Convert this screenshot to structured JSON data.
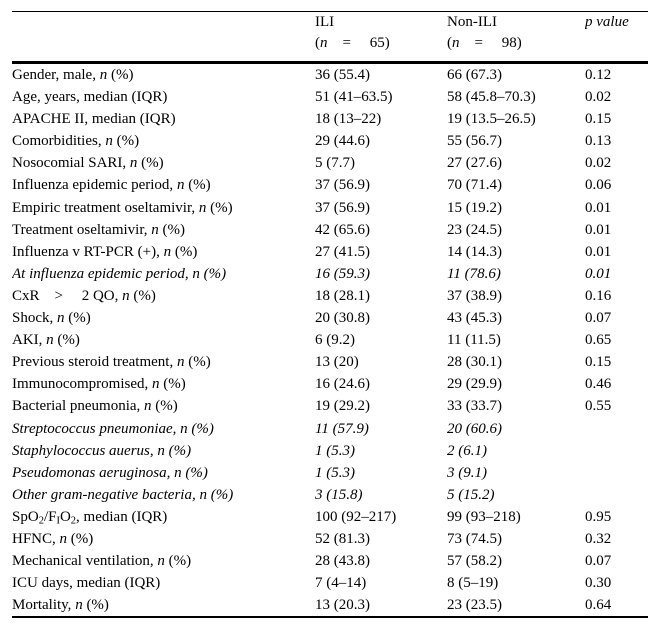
{
  "table": {
    "header": {
      "label_col": "",
      "ili_line1": "ILI",
      "ili_line2": "(*n* =  65)",
      "nonili_line1": "Non-ILI",
      "nonili_line2": "(*n* =  98)",
      "p_label": "*p value*"
    },
    "rows": [
      {
        "label": "Gender, male, *n* (%)",
        "ili": "36 (55.4)",
        "nonili": "66 (67.3)",
        "p": "0.12",
        "indent": false,
        "italic": false
      },
      {
        "label": "Age, years, median (IQR)",
        "ili": "51 (41–63.5)",
        "nonili": "58 (45.8–70.3)",
        "p": "0.02",
        "indent": false,
        "italic": false
      },
      {
        "label": "APACHE II, median (IQR)",
        "ili": "18 (13–22)",
        "nonili": "19 (13.5–26.5)",
        "p": "0.15",
        "indent": false,
        "italic": false
      },
      {
        "label": "Comorbidities, *n* (%)",
        "ili": "29 (44.6)",
        "nonili": "55 (56.7)",
        "p": "0.13",
        "indent": false,
        "italic": false
      },
      {
        "label": "Nosocomial SARI, *n* (%)",
        "ili": "5 (7.7)",
        "nonili": "27 (27.6)",
        "p": "0.02",
        "indent": false,
        "italic": false
      },
      {
        "label": "Influenza epidemic period, *n* (%)",
        "ili": "37 (56.9)",
        "nonili": "70 (71.4)",
        "p": "0.06",
        "indent": false,
        "italic": false
      },
      {
        "label": "Empiric treatment oseltamivir, *n* (%)",
        "ili": "37 (56.9)",
        "nonili": "15 (19.2)",
        "p": "0.01",
        "indent": false,
        "italic": false
      },
      {
        "label": "Treatment oseltamivir, *n* (%)",
        "ili": "42 (65.6)",
        "nonili": "23 (24.5)",
        "p": "0.01",
        "indent": false,
        "italic": false
      },
      {
        "label": "Influenza v RT-PCR (+), *n* (%)",
        "ili": "27 (41.5)",
        "nonili": "14 (14.3)",
        "p": "0.01",
        "indent": false,
        "italic": false
      },
      {
        "label": "At influenza epidemic period, n (%)",
        "ili": "16 (59.3)",
        "nonili": "11 (78.6)",
        "p": "0.01",
        "indent": true,
        "italic": true
      },
      {
        "label": "CxR >  2 QO, *n* (%)",
        "ili": "18 (28.1)",
        "nonili": "37 (38.9)",
        "p": "0.16",
        "indent": false,
        "italic": false
      },
      {
        "label": "Shock, *n* (%)",
        "ili": "20 (30.8)",
        "nonili": "43 (45.3)",
        "p": "0.07",
        "indent": false,
        "italic": false
      },
      {
        "label": "AKI, *n* (%)",
        "ili": "6 (9.2)",
        "nonili": "11 (11.5)",
        "p": "0.65",
        "indent": false,
        "italic": false
      },
      {
        "label": "Previous steroid treatment, *n* (%)",
        "ili": "13 (20)",
        "nonili": "28 (30.1)",
        "p": "0.15",
        "indent": false,
        "italic": false
      },
      {
        "label": "Immunocompromised, *n* (%)",
        "ili": "16 (24.6)",
        "nonili": "29 (29.9)",
        "p": "0.46",
        "indent": false,
        "italic": false
      },
      {
        "label": "Bacterial pneumonia, *n* (%)",
        "ili": "19 (29.2)",
        "nonili": "33 (33.7)",
        "p": "0.55",
        "indent": false,
        "italic": false
      },
      {
        "label": "Streptococcus pneumoniae, n (%)",
        "ili": "11 (57.9)",
        "nonili": "20 (60.6)",
        "p": "",
        "indent": true,
        "italic": true
      },
      {
        "label": "Staphylococcus auerus, n (%)",
        "ili": "1 (5.3)",
        "nonili": "2 (6.1)",
        "p": "",
        "indent": true,
        "italic": true
      },
      {
        "label": "Pseudomonas aeruginosa, n (%)",
        "ili": "1 (5.3)",
        "nonili": "3 (9.1)",
        "p": "",
        "indent": true,
        "italic": true
      },
      {
        "label": "Other gram-negative bacteria, n (%)",
        "ili": "3 (15.8)",
        "nonili": "5 (15.2)",
        "p": "",
        "indent": true,
        "italic": true
      },
      {
        "label": "SpO~2~/F~I~O~2~, median (IQR)",
        "ili": "100 (92–217)",
        "nonili": "99 (93–218)",
        "p": "0.95",
        "indent": false,
        "italic": false
      },
      {
        "label": "HFNC, *n* (%)",
        "ili": "52 (81.3)",
        "nonili": "73 (74.5)",
        "p": "0.32",
        "indent": false,
        "italic": false
      },
      {
        "label": "Mechanical ventilation, *n* (%)",
        "ili": "28 (43.8)",
        "nonili": "57 (58.2)",
        "p": "0.07",
        "indent": false,
        "italic": false
      },
      {
        "label": "ICU days, median (IQR)",
        "ili": "7 (4–14)",
        "nonili": "8 (5–19)",
        "p": "0.30",
        "indent": false,
        "italic": false
      },
      {
        "label": "Mortality, *n* (%)",
        "ili": "13 (20.3)",
        "nonili": "23 (23.5)",
        "p": "0.64",
        "indent": false,
        "italic": false
      }
    ]
  }
}
